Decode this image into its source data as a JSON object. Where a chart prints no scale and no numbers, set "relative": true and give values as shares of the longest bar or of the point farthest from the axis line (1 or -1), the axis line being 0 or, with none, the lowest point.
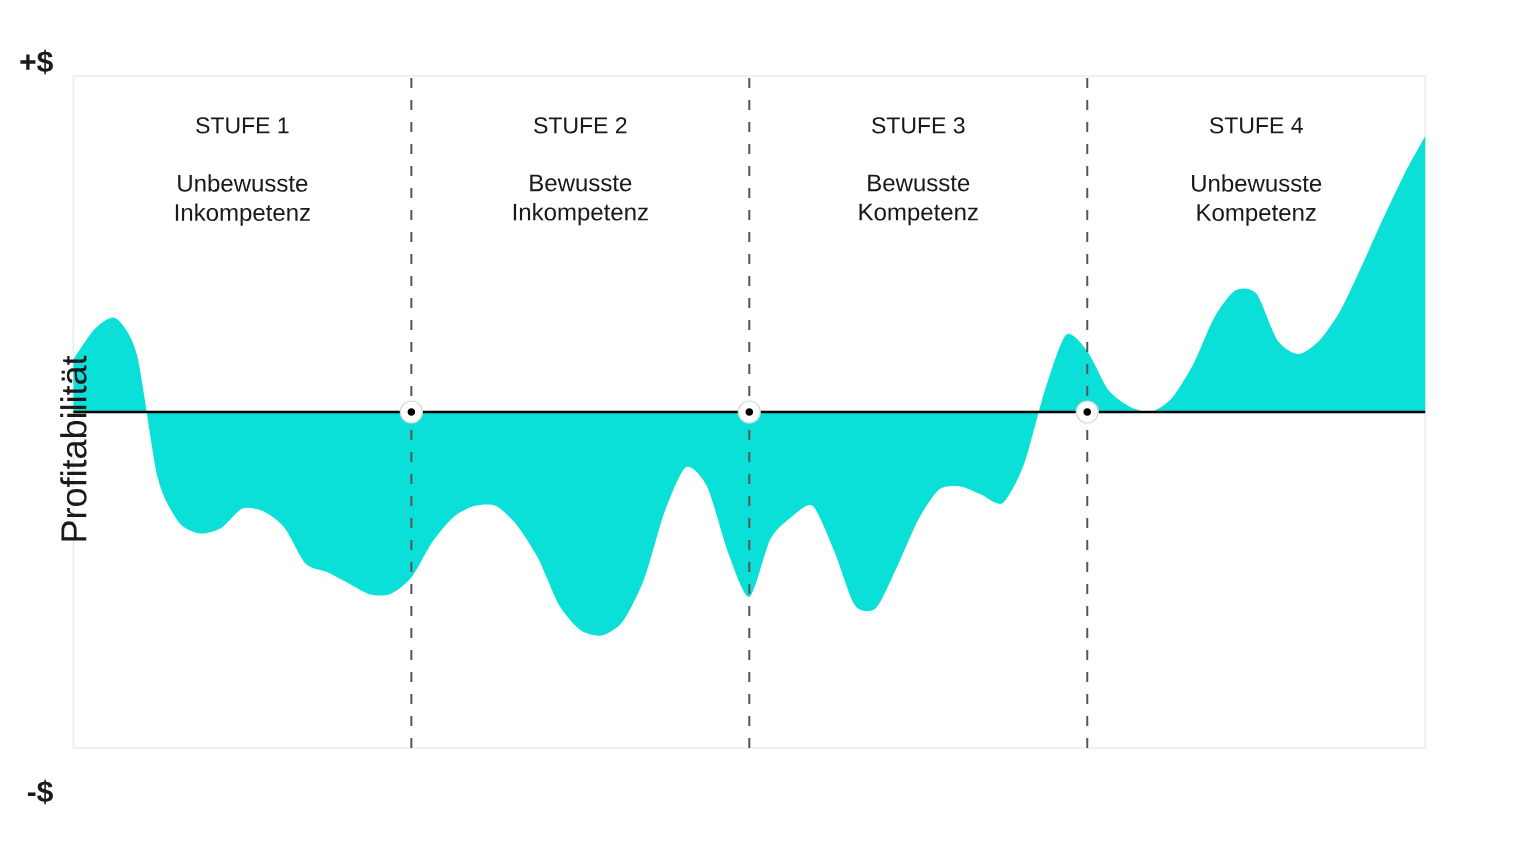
{
  "chart_data": {
    "type": "area",
    "ylabel": "Profitabilität",
    "relative": true,
    "color": "#0be0d8",
    "grid": "x",
    "categories": [
      null,
      null,
      null,
      null,
      null,
      null,
      null,
      null,
      null,
      null,
      null,
      null,
      null,
      null,
      null,
      null,
      null,
      null,
      null,
      null,
      null,
      null,
      null,
      null,
      null,
      null,
      null,
      null,
      null,
      null,
      null,
      null,
      null,
      null,
      null,
      null,
      null,
      null,
      null,
      null,
      null,
      null,
      null,
      null,
      null,
      null,
      null,
      null,
      null,
      null,
      null,
      null,
      null,
      null,
      null,
      null,
      null,
      null,
      null,
      null,
      null,
      null,
      null,
      null,
      null
    ],
    "values": [
      0.19,
      0.3,
      0.34,
      0.21,
      -0.24,
      -0.4,
      -0.44,
      -0.42,
      -0.35,
      -0.36,
      -0.42,
      -0.55,
      -0.58,
      -0.62,
      -0.66,
      -0.66,
      -0.6,
      -0.47,
      -0.38,
      -0.34,
      -0.34,
      -0.41,
      -0.53,
      -0.7,
      -0.79,
      -0.81,
      -0.76,
      -0.61,
      -0.36,
      -0.2,
      -0.27,
      -0.51,
      -0.67,
      -0.46,
      -0.38,
      -0.34,
      -0.5,
      -0.7,
      -0.71,
      -0.56,
      -0.39,
      -0.28,
      -0.27,
      -0.3,
      -0.33,
      -0.19,
      0.08,
      0.28,
      0.22,
      0.08,
      0.02,
      0.0,
      0.05,
      0.17,
      0.34,
      0.44,
      0.43,
      0.26,
      0.21,
      0.26,
      0.37,
      0.53,
      0.7,
      0.86,
      1.0
    ],
    "annotations": [
      "+$",
      "-$",
      "STUFE 1",
      "Unbewusste Inkompetenz",
      "STUFE 2",
      "Bewusste Inkompetenz",
      "STUFE 3",
      "Bewusste Kompetenz",
      "STUFE 4",
      "Unbewusste Kompetenz"
    ]
  }
}
